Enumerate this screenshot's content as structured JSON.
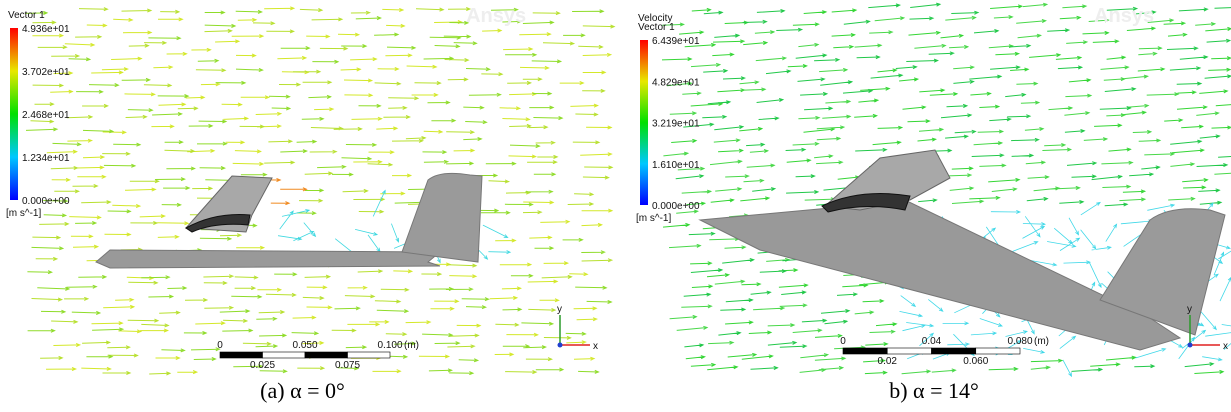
{
  "panels": [
    {
      "legend": {
        "title": [
          "Vector 1"
        ],
        "ticks": [
          "4.936e+01",
          "3.702e+01",
          "2.468e+01",
          "1.234e+01",
          "0.000e+00"
        ],
        "unit": "[m s^-1]"
      },
      "scale_bar": {
        "top": [
          "0",
          "0.050",
          "0.100"
        ],
        "unit": "(m)",
        "bottom": [
          "0.025",
          "0.075"
        ]
      },
      "triad": {
        "y": "y",
        "x": "x"
      },
      "watermark": "Ansys",
      "caption": "(a) α = 0°"
    },
    {
      "legend": {
        "title": [
          "Velocity",
          "Vector 1"
        ],
        "ticks": [
          "6.439e+01",
          "4.829e+01",
          "3.219e+01",
          "1.610e+01",
          "0.000e+00"
        ],
        "unit": "[m s^-1]"
      },
      "scale_bar": {
        "top": [
          "0",
          "0.04",
          "0.080"
        ],
        "unit": "(m)",
        "bottom": [
          "0.02",
          "0.060"
        ]
      },
      "triad": {
        "y": "y",
        "x": "x"
      },
      "watermark": "Ansys",
      "caption": "b) α = 14°"
    }
  ]
}
